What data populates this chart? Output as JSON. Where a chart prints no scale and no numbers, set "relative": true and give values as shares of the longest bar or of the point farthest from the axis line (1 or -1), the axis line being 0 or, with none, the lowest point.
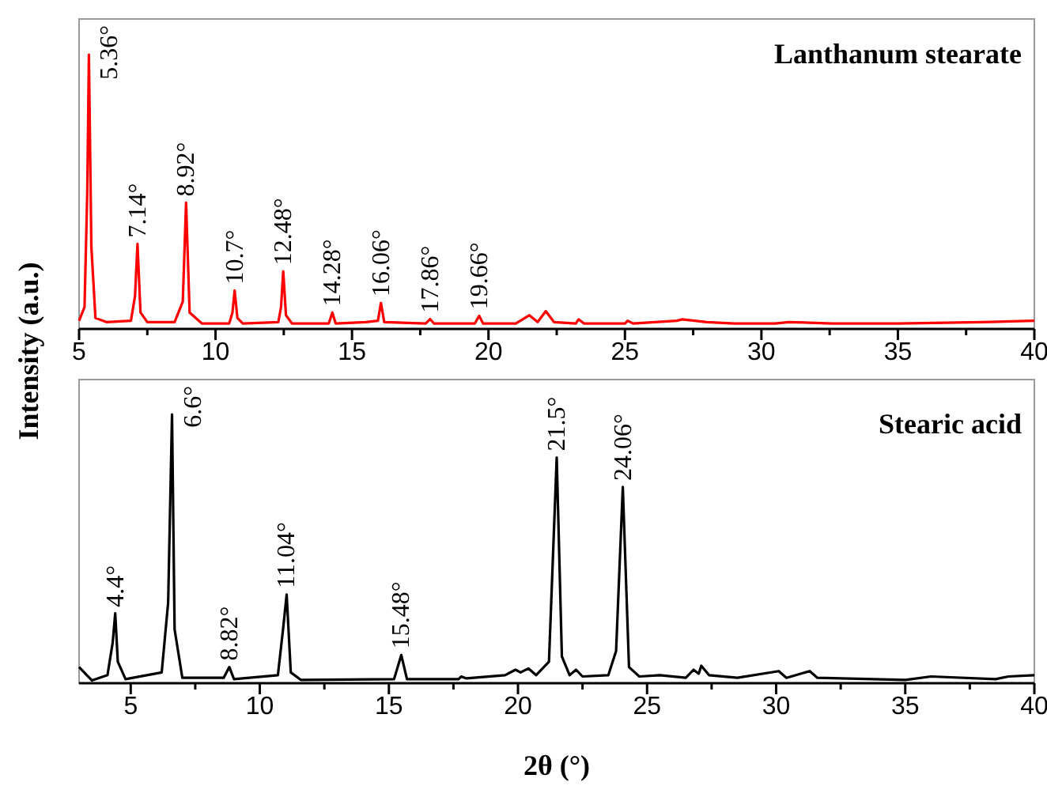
{
  "chart_data": [
    {
      "type": "line",
      "title": "Lanthanum stearate",
      "ylabel": "Intensity (a.u.)",
      "relative": true,
      "xlim": [
        5,
        40
      ],
      "xticks": [
        5,
        {
          "value": 7.5,
          "label": null
        },
        10,
        {
          "value": 12.5,
          "label": null
        },
        15,
        {
          "value": 17.5,
          "label": null
        },
        20,
        {
          "value": 22.5,
          "label": null
        },
        25,
        {
          "value": 27.5,
          "label": null
        },
        30,
        {
          "value": 32.5,
          "label": null
        },
        35,
        {
          "value": 37.5,
          "label": null
        },
        40
      ],
      "series": [
        {
          "color": "#ff0000",
          "x": [
            5,
            5.2,
            5.3,
            5.36,
            5.45,
            5.6,
            6,
            6.9,
            7.05,
            7.14,
            7.25,
            7.5,
            8.5,
            8.8,
            8.92,
            9.05,
            9.5,
            10.5,
            10.62,
            10.7,
            10.8,
            11,
            12.3,
            12.4,
            12.48,
            12.58,
            12.8,
            14.15,
            14.28,
            14.4,
            15.5,
            15.95,
            16.06,
            16.18,
            17.7,
            17.86,
            18,
            19.5,
            19.66,
            19.8,
            21,
            21.5,
            21.8,
            22.1,
            22.4,
            23.2,
            23.3,
            23.5,
            25,
            25.1,
            25.3,
            26.9,
            27.1,
            28,
            29,
            30.5,
            31,
            32.6,
            35,
            38.1,
            40
          ],
          "values": [
            0.03,
            0.08,
            0.5,
            1,
            0.3,
            0.04,
            0.025,
            0.03,
            0.12,
            0.31,
            0.06,
            0.025,
            0.025,
            0.1,
            0.46,
            0.06,
            0.02,
            0.02,
            0.06,
            0.14,
            0.04,
            0.02,
            0.025,
            0.08,
            0.21,
            0.05,
            0.02,
            0.02,
            0.06,
            0.02,
            0.025,
            0.03,
            0.095,
            0.025,
            0.02,
            0.036,
            0.02,
            0.02,
            0.048,
            0.02,
            0.02,
            0.05,
            0.025,
            0.065,
            0.025,
            0.02,
            0.035,
            0.02,
            0.02,
            0.03,
            0.02,
            0.03,
            0.035,
            0.025,
            0.02,
            0.02,
            0.025,
            0.02,
            0.02,
            0.025,
            0.03
          ]
        }
      ],
      "annotations": [
        {
          "text": "5.36°",
          "x": 5.36,
          "y": 1
        },
        {
          "text": "7.14°",
          "x": 7.14,
          "y": 0.31
        },
        {
          "text": "8.92°",
          "x": 8.92,
          "y": 0.46
        },
        {
          "text": "10.7°",
          "x": 10.7,
          "y": 0.14
        },
        {
          "text": "12.48°",
          "x": 12.48,
          "y": 0.21
        },
        {
          "text": "14.28°",
          "x": 14.28,
          "y": 0.06
        },
        {
          "text": "16.06°",
          "x": 16.06,
          "y": 0.095
        },
        {
          "text": "17.86°",
          "x": 17.86,
          "y": 0.036
        },
        {
          "text": "19.66°",
          "x": 19.66,
          "y": 0.048
        }
      ]
    },
    {
      "type": "line",
      "title": "Stearic acid",
      "xlabel": "2θ (°)",
      "relative": true,
      "xlim": [
        3,
        40
      ],
      "xticks": [
        5,
        {
          "value": 7.5,
          "label": null
        },
        10,
        {
          "value": 12.5,
          "label": null
        },
        15,
        {
          "value": 17.5,
          "label": null
        },
        20,
        {
          "value": 22.5,
          "label": null
        },
        25,
        {
          "value": 27.5,
          "label": null
        },
        30,
        {
          "value": 32.5,
          "label": null
        },
        35,
        {
          "value": 37.5,
          "label": null
        },
        40
      ],
      "series": [
        {
          "color": "#000000",
          "x": [
            3,
            3.5,
            4.1,
            4.3,
            4.4,
            4.5,
            4.8,
            6.2,
            6.45,
            6.6,
            6.7,
            7,
            8.6,
            8.82,
            9,
            10.7,
            10.9,
            11.04,
            11.2,
            11.6,
            15.2,
            15.48,
            15.7,
            17.7,
            17.8,
            18,
            19.5,
            19.9,
            20.1,
            20.4,
            20.7,
            21.2,
            21.5,
            21.7,
            22,
            22.25,
            22.5,
            23.5,
            23.8,
            24.06,
            24.3,
            24.7,
            25.5,
            26.5,
            26.8,
            27,
            27.1,
            27.4,
            28.5,
            30.1,
            30.4,
            31.3,
            31.6,
            35,
            36,
            38.5,
            39,
            40
          ],
          "values": [
            0.06,
            0.01,
            0.03,
            0.15,
            0.26,
            0.08,
            0.015,
            0.04,
            0.3,
            1,
            0.2,
            0.02,
            0.02,
            0.06,
            0.015,
            0.03,
            0.2,
            0.33,
            0.04,
            0.012,
            0.015,
            0.105,
            0.015,
            0.015,
            0.025,
            0.018,
            0.03,
            0.05,
            0.04,
            0.055,
            0.03,
            0.08,
            0.84,
            0.1,
            0.03,
            0.05,
            0.025,
            0.03,
            0.12,
            0.73,
            0.06,
            0.025,
            0.03,
            0.02,
            0.05,
            0.035,
            0.065,
            0.03,
            0.02,
            0.045,
            0.02,
            0.045,
            0.02,
            0.012,
            0.025,
            0.015,
            0.025,
            0.03
          ]
        }
      ],
      "annotations": [
        {
          "text": "4.4°",
          "x": 4.4,
          "y": 0.26
        },
        {
          "text": "6.6°",
          "x": 6.6,
          "y": 1
        },
        {
          "text": "8.82°",
          "x": 8.82,
          "y": 0.06
        },
        {
          "text": "11.04°",
          "x": 11.04,
          "y": 0.33
        },
        {
          "text": "15.48°",
          "x": 15.48,
          "y": 0.105
        },
        {
          "text": "21.5°",
          "x": 21.5,
          "y": 0.84
        },
        {
          "text": "24.06°",
          "x": 24.06,
          "y": 0.73
        }
      ]
    }
  ]
}
